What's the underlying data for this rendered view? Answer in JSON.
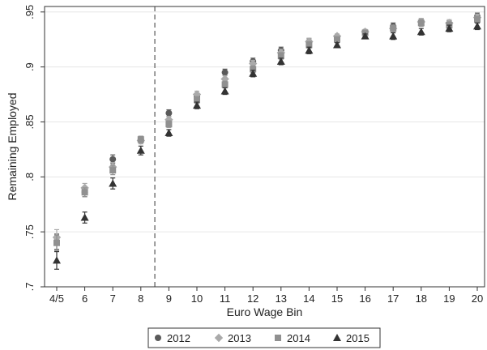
{
  "chart_data": {
    "type": "scatter",
    "xlabel": "Euro Wage Bin",
    "ylabel": "Remaining Employed",
    "categories": [
      "4/5",
      "6",
      "7",
      "8",
      "9",
      "10",
      "11",
      "12",
      "13",
      "14",
      "15",
      "16",
      "17",
      "18",
      "19",
      "20"
    ],
    "yticks": [
      0.7,
      0.75,
      0.8,
      0.85,
      0.9,
      0.95
    ],
    "ytick_labels": [
      ".7",
      ".75",
      ".8",
      ".85",
      ".9",
      ".95"
    ],
    "ylim": [
      0.7,
      0.955
    ],
    "grid": "horizontal",
    "reference_line": {
      "between": [
        "8",
        "9"
      ],
      "style": "dashed"
    },
    "legend_position": "bottom",
    "series": [
      {
        "name": "2012",
        "marker": "circle",
        "color": "#5a5a5a",
        "values": [
          0.741,
          0.786,
          0.816,
          0.834,
          0.858,
          0.873,
          0.895,
          0.905,
          0.915,
          0.923,
          0.927,
          0.932,
          0.937,
          0.941,
          0.939,
          0.946
        ],
        "ci": [
          0.007,
          0.004,
          0.004,
          0.003,
          0.003,
          0.003,
          0.003,
          0.003,
          0.003,
          0.003,
          0.002,
          0.002,
          0.003,
          0.003,
          0.003,
          0.003
        ]
      },
      {
        "name": "2013",
        "marker": "diamond",
        "color": "#aaaaaa",
        "values": [
          0.745,
          0.79,
          0.809,
          0.833,
          0.852,
          0.875,
          0.889,
          0.903,
          0.913,
          0.923,
          0.928,
          0.932,
          0.935,
          0.941,
          0.94,
          0.945
        ],
        "ci": [
          0.007,
          0.004,
          0.004,
          0.003,
          0.003,
          0.003,
          0.003,
          0.003,
          0.003,
          0.003,
          0.002,
          0.002,
          0.003,
          0.003,
          0.003,
          0.003
        ]
      },
      {
        "name": "2014",
        "marker": "square",
        "color": "#909090",
        "values": [
          0.74,
          0.786,
          0.806,
          0.834,
          0.848,
          0.87,
          0.884,
          0.898,
          0.91,
          0.92,
          0.925,
          0.931,
          0.935,
          0.94,
          0.938,
          0.943
        ],
        "ci": [
          0.007,
          0.004,
          0.004,
          0.003,
          0.003,
          0.003,
          0.003,
          0.003,
          0.003,
          0.003,
          0.002,
          0.002,
          0.003,
          0.003,
          0.003,
          0.003
        ]
      },
      {
        "name": "2015",
        "marker": "triangle",
        "color": "#333333",
        "values": [
          0.724,
          0.763,
          0.794,
          0.824,
          0.84,
          0.865,
          0.878,
          0.894,
          0.905,
          0.915,
          0.92,
          0.928,
          0.928,
          0.932,
          0.935,
          0.937
        ],
        "ci": [
          0.008,
          0.005,
          0.005,
          0.004,
          0.003,
          0.003,
          0.003,
          0.003,
          0.003,
          0.003,
          0.002,
          0.002,
          0.003,
          0.003,
          0.003,
          0.003
        ]
      }
    ]
  }
}
